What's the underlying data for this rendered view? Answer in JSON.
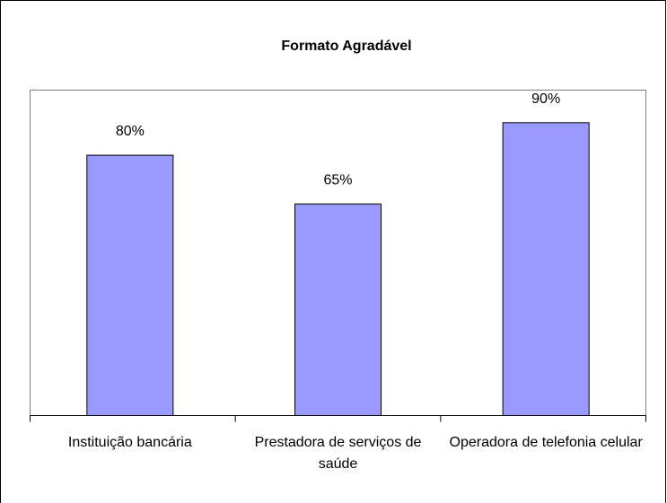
{
  "chart_data": {
    "type": "bar",
    "title": "Formato Agradável",
    "categories": [
      "Instituição bancária",
      "Prestadora de serviços de saúde",
      "Operadora de telefonia celular"
    ],
    "values": [
      80,
      65,
      90
    ],
    "value_labels": [
      "80%",
      "65%",
      "90%"
    ],
    "color": "#9999ff",
    "ylim": [
      0,
      100
    ]
  }
}
